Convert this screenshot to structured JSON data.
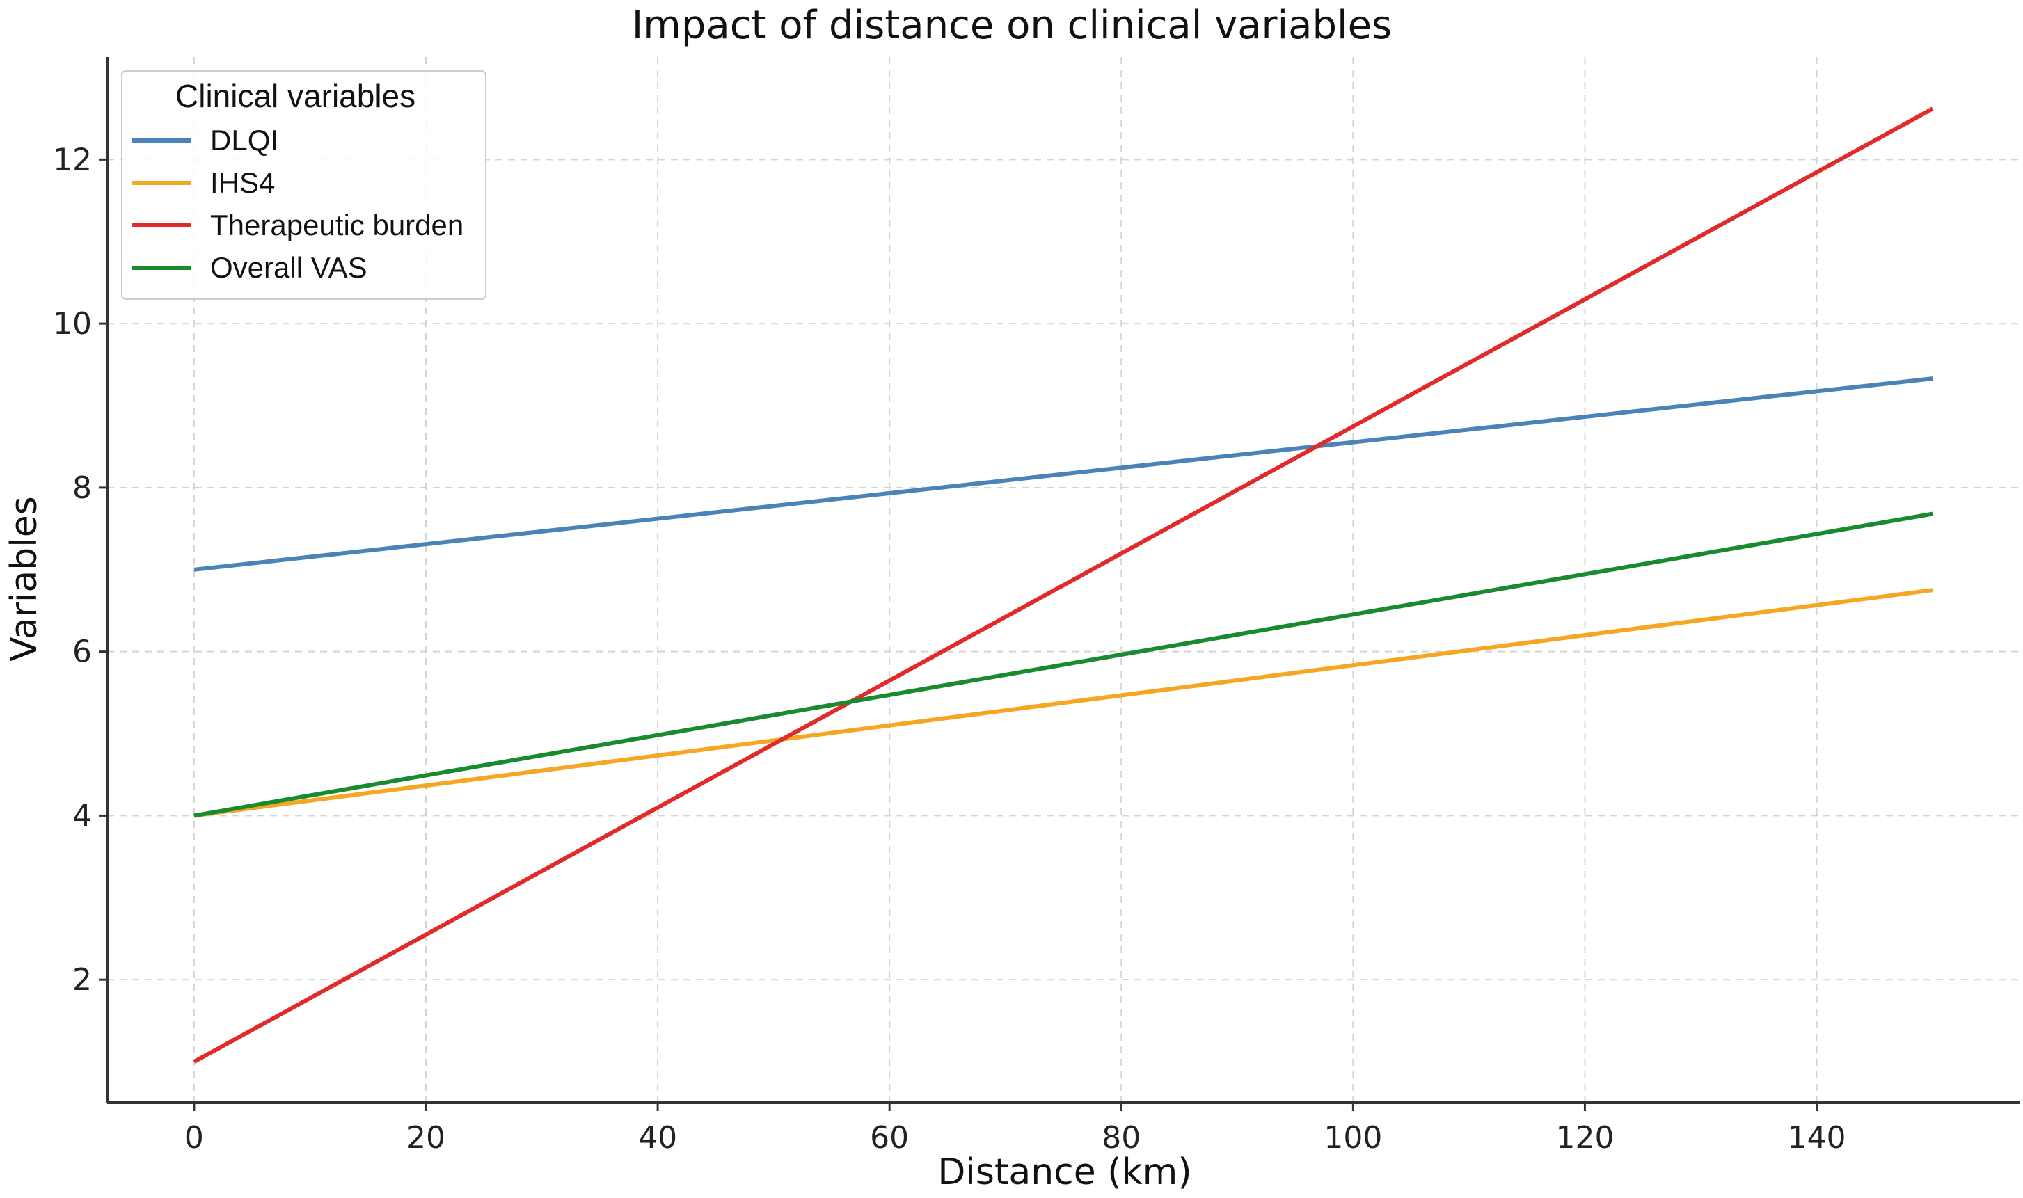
{
  "chart_data": {
    "type": "line",
    "title": "Impact of distance on clinical variables",
    "xlabel": "Distance (km)",
    "ylabel": "Variables",
    "xlim": [
      -7.5,
      157.5
    ],
    "ylim": [
      0.5,
      13.25
    ],
    "xticks": [
      0,
      20,
      40,
      60,
      80,
      100,
      120,
      140
    ],
    "yticks": [
      2,
      4,
      6,
      8,
      10,
      12
    ],
    "grid": true,
    "legend": {
      "title": "Clinical variables",
      "placement": "top-left"
    },
    "x": [
      0,
      150
    ],
    "series": [
      {
        "name": "DLQI",
        "color": "#4a83b8",
        "values": [
          7.0,
          9.33
        ]
      },
      {
        "name": "IHS4",
        "color": "#f5a623",
        "values": [
          4.0,
          6.75
        ]
      },
      {
        "name": "Therapeutic burden",
        "color": "#e22a2a",
        "values": [
          1.0,
          12.62
        ]
      },
      {
        "name": "Overall VAS",
        "color": "#1a8a2e",
        "values": [
          4.0,
          7.68
        ]
      }
    ]
  }
}
